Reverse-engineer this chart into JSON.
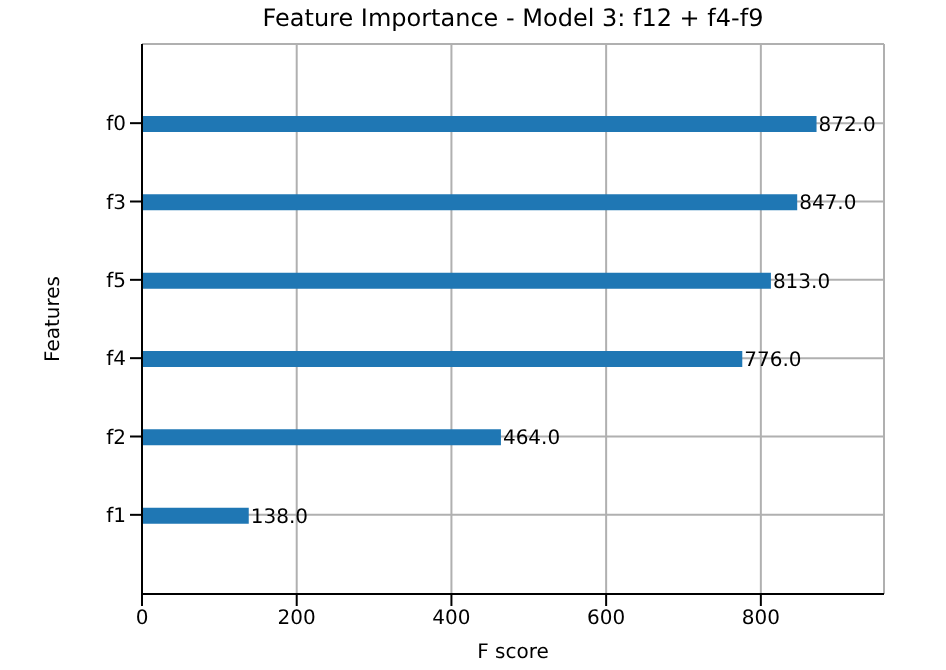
{
  "chart_data": {
    "type": "bar",
    "orientation": "horizontal",
    "title": "Feature Importance - Model 3: f12 + f4-f9",
    "xlabel": "F score",
    "ylabel": "Features",
    "categories": [
      "f0",
      "f3",
      "f5",
      "f4",
      "f2",
      "f1"
    ],
    "series": [
      {
        "color": "#1f77b4",
        "values": [
          872,
          847,
          813,
          776,
          464,
          138
        ],
        "value_labels": [
          "872.0",
          "847.0",
          "813.0",
          "776.0",
          "464.0",
          "138.0"
        ]
      }
    ],
    "xlim": [
      0,
      959.2
    ],
    "xticks": [
      0,
      200,
      400,
      600,
      800
    ],
    "grid": true
  }
}
